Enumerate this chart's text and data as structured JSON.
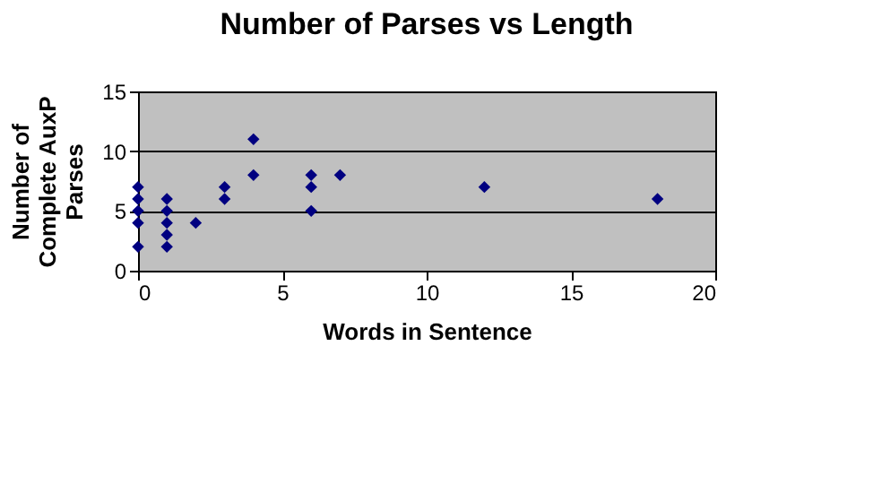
{
  "chart_data": {
    "type": "scatter",
    "title": "Number of Parses vs Length",
    "xlabel": "Words in Sentence",
    "ylabel": "Number of Complete AuxP Parses",
    "x": [
      0,
      0,
      0,
      0,
      0,
      1,
      1,
      1,
      1,
      1,
      2,
      3,
      3,
      4,
      4,
      6,
      6,
      6,
      7,
      12,
      18
    ],
    "series": [
      {
        "color": "#000080",
        "values": [
          2,
          4,
          5,
          6,
          7,
          2,
          3,
          4,
          5,
          6,
          4,
          6,
          7,
          8,
          11,
          5,
          7,
          8,
          8,
          7,
          6
        ]
      }
    ],
    "xlim": [
      0,
      20
    ],
    "xticks": [
      0,
      5,
      10,
      15,
      20
    ],
    "ylim": [
      0,
      15
    ],
    "yticks": [
      0,
      5,
      10,
      15
    ],
    "grid": "y",
    "marker": "diamond"
  }
}
